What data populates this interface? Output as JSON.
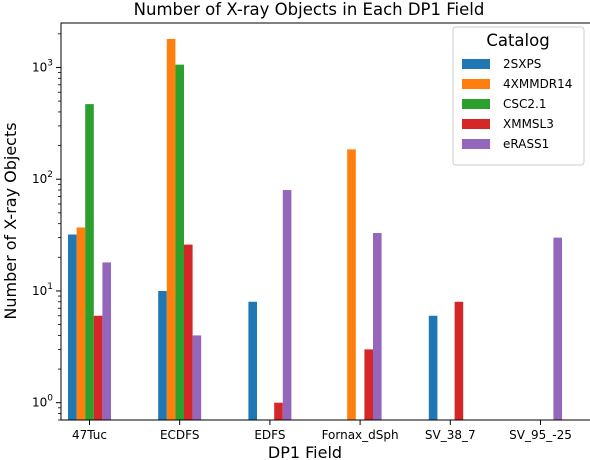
{
  "chart_data": {
    "type": "bar",
    "title": "Number of X-ray Objects in Each DP1 Field",
    "xlabel": "DP1 Field",
    "ylabel": "Number of X-ray Objects",
    "yscale": "log",
    "ylim": [
      0.7,
      2500
    ],
    "yticks": [
      {
        "value": 1,
        "base": "10",
        "exp": "0"
      },
      {
        "value": 10,
        "base": "10",
        "exp": "1"
      },
      {
        "value": 100,
        "base": "10",
        "exp": "2"
      },
      {
        "value": 1000,
        "base": "10",
        "exp": "3"
      }
    ],
    "grid": false,
    "legend": {
      "title": "Catalog",
      "position": "top-right"
    },
    "categories": [
      "47Tuc",
      "ECDFS",
      "EDFS",
      "Fornax_dSph",
      "SV_38_7",
      "SV_95_-25"
    ],
    "series": [
      {
        "name": "2SXPS",
        "color": "#1f77b4",
        "values": [
          32,
          10,
          8,
          null,
          6,
          null
        ]
      },
      {
        "name": "4XMMDR14",
        "color": "#ff7f0e",
        "values": [
          37,
          1800,
          null,
          185,
          null,
          null
        ]
      },
      {
        "name": "CSC2.1",
        "color": "#2ca02c",
        "values": [
          470,
          1060,
          null,
          null,
          null,
          null
        ]
      },
      {
        "name": "XMMSL3",
        "color": "#d62728",
        "values": [
          6,
          26,
          1,
          3,
          8,
          null
        ]
      },
      {
        "name": "eRASS1",
        "color": "#9467bd",
        "values": [
          18,
          4,
          80,
          33,
          null,
          30
        ]
      }
    ]
  }
}
